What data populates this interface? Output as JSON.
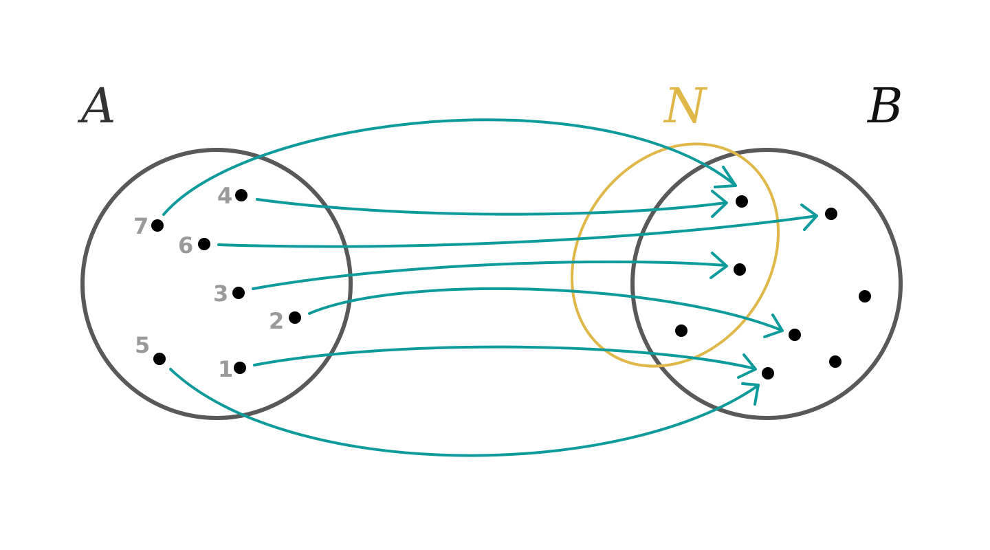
{
  "sets": {
    "A": {
      "label": "A",
      "color": "#333333"
    },
    "B": {
      "label": "B",
      "color": "#111111"
    },
    "N": {
      "label": "N",
      "color": "#e0b84a"
    }
  },
  "elements": [
    "1",
    "2",
    "3",
    "4",
    "5",
    "6",
    "7"
  ],
  "mapping_color": "#0f9b9b",
  "mapping": [
    {
      "from": "7",
      "to": "b1"
    },
    {
      "from": "4",
      "to": "b2"
    },
    {
      "from": "6",
      "to": "b3"
    },
    {
      "from": "3",
      "to": "b4"
    },
    {
      "from": "2",
      "to": "b5"
    },
    {
      "from": "1",
      "to": "b6"
    },
    {
      "from": "5",
      "to": "b6"
    }
  ]
}
